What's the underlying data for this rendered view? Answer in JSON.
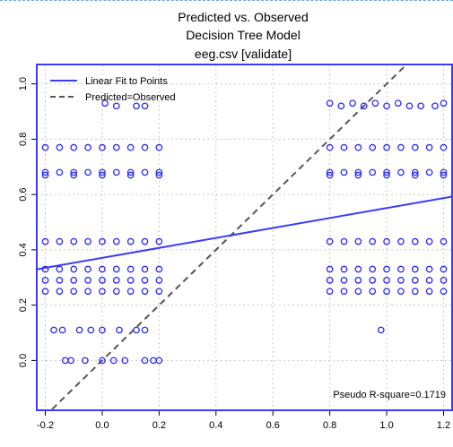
{
  "chart_data": {
    "type": "scatter",
    "title": [
      "Predicted vs. Observed",
      "Decision Tree Model",
      "eeg.csv [validate]"
    ],
    "xlabel": "",
    "ylabel": "",
    "xlim": [
      -0.23,
      1.23
    ],
    "ylim": [
      -0.18,
      1.07
    ],
    "x_ticks": [
      -0.2,
      0.0,
      0.2,
      0.4,
      0.6,
      0.8,
      1.0,
      1.2
    ],
    "x_tick_labels": [
      "-0.2",
      "0.0",
      "0.2",
      "0.4",
      "0.6",
      "0.8",
      "1.0",
      "1.2"
    ],
    "y_ticks": [
      0.0,
      0.2,
      0.4,
      0.6,
      0.8,
      1.0
    ],
    "y_tick_labels": [
      "0.0",
      "0.2",
      "0.4",
      "0.6",
      "0.8",
      "1.0"
    ],
    "grid": true,
    "legend": {
      "placement": "top-left",
      "entries": [
        {
          "label": "Linear Fit to Points",
          "style": "solid",
          "color": "#3b3bff"
        },
        {
          "label": "Predicted=Observed",
          "style": "dashed",
          "color": "#555555"
        }
      ]
    },
    "annotation": "Pseudo R-square=0.1719",
    "point_color": "#2a2af5",
    "series": [
      {
        "values": [
          [
            0.01,
            0.93
          ],
          [
            0.05,
            0.92
          ],
          [
            0.12,
            0.92
          ],
          [
            0.15,
            0.92
          ],
          [
            0.8,
            0.93
          ],
          [
            0.84,
            0.92
          ],
          [
            0.88,
            0.93
          ],
          [
            0.92,
            0.92
          ],
          [
            0.96,
            0.93
          ],
          [
            1.0,
            0.92
          ],
          [
            1.04,
            0.93
          ],
          [
            1.08,
            0.92
          ],
          [
            1.12,
            0.92
          ],
          [
            1.17,
            0.92
          ],
          [
            1.2,
            0.93
          ],
          [
            -0.2,
            0.77
          ],
          [
            -0.15,
            0.77
          ],
          [
            -0.1,
            0.77
          ],
          [
            -0.05,
            0.77
          ],
          [
            0.0,
            0.77
          ],
          [
            0.05,
            0.77
          ],
          [
            0.1,
            0.77
          ],
          [
            0.15,
            0.77
          ],
          [
            0.2,
            0.77
          ],
          [
            0.8,
            0.77
          ],
          [
            0.85,
            0.77
          ],
          [
            0.9,
            0.77
          ],
          [
            0.95,
            0.77
          ],
          [
            1.0,
            0.77
          ],
          [
            1.05,
            0.77
          ],
          [
            1.1,
            0.77
          ],
          [
            1.15,
            0.77
          ],
          [
            1.2,
            0.77
          ],
          [
            -0.2,
            0.68
          ],
          [
            -0.15,
            0.68
          ],
          [
            -0.1,
            0.68
          ],
          [
            -0.05,
            0.68
          ],
          [
            0.0,
            0.68
          ],
          [
            0.05,
            0.68
          ],
          [
            0.1,
            0.68
          ],
          [
            0.15,
            0.68
          ],
          [
            0.2,
            0.68
          ],
          [
            0.8,
            0.68
          ],
          [
            0.85,
            0.68
          ],
          [
            0.9,
            0.68
          ],
          [
            0.95,
            0.68
          ],
          [
            1.0,
            0.68
          ],
          [
            1.05,
            0.68
          ],
          [
            1.1,
            0.68
          ],
          [
            1.15,
            0.68
          ],
          [
            1.2,
            0.68
          ],
          [
            -0.2,
            0.67
          ],
          [
            -0.1,
            0.67
          ],
          [
            0.0,
            0.67
          ],
          [
            0.1,
            0.67
          ],
          [
            0.2,
            0.67
          ],
          [
            0.8,
            0.67
          ],
          [
            0.9,
            0.67
          ],
          [
            1.0,
            0.67
          ],
          [
            1.1,
            0.67
          ],
          [
            1.2,
            0.67
          ],
          [
            -0.2,
            0.43
          ],
          [
            -0.15,
            0.43
          ],
          [
            -0.1,
            0.43
          ],
          [
            -0.05,
            0.43
          ],
          [
            0.0,
            0.43
          ],
          [
            0.05,
            0.43
          ],
          [
            0.1,
            0.43
          ],
          [
            0.15,
            0.43
          ],
          [
            0.2,
            0.43
          ],
          [
            0.8,
            0.43
          ],
          [
            0.85,
            0.43
          ],
          [
            0.9,
            0.43
          ],
          [
            0.95,
            0.43
          ],
          [
            1.0,
            0.43
          ],
          [
            1.05,
            0.43
          ],
          [
            1.1,
            0.43
          ],
          [
            1.15,
            0.43
          ],
          [
            1.2,
            0.43
          ],
          [
            -0.2,
            0.33
          ],
          [
            -0.15,
            0.33
          ],
          [
            -0.1,
            0.33
          ],
          [
            -0.05,
            0.33
          ],
          [
            0.0,
            0.33
          ],
          [
            0.05,
            0.33
          ],
          [
            0.1,
            0.33
          ],
          [
            0.15,
            0.33
          ],
          [
            0.2,
            0.33
          ],
          [
            0.8,
            0.33
          ],
          [
            0.85,
            0.33
          ],
          [
            0.9,
            0.33
          ],
          [
            0.95,
            0.33
          ],
          [
            1.0,
            0.33
          ],
          [
            1.05,
            0.33
          ],
          [
            1.1,
            0.33
          ],
          [
            1.15,
            0.33
          ],
          [
            1.2,
            0.33
          ],
          [
            -0.2,
            0.29
          ],
          [
            -0.15,
            0.29
          ],
          [
            -0.1,
            0.29
          ],
          [
            -0.05,
            0.29
          ],
          [
            0.0,
            0.29
          ],
          [
            0.05,
            0.29
          ],
          [
            0.1,
            0.29
          ],
          [
            0.15,
            0.29
          ],
          [
            0.2,
            0.29
          ],
          [
            0.8,
            0.29
          ],
          [
            0.85,
            0.29
          ],
          [
            0.9,
            0.29
          ],
          [
            0.95,
            0.29
          ],
          [
            1.0,
            0.29
          ],
          [
            1.05,
            0.29
          ],
          [
            1.1,
            0.29
          ],
          [
            1.15,
            0.29
          ],
          [
            1.2,
            0.29
          ],
          [
            -0.2,
            0.25
          ],
          [
            -0.15,
            0.25
          ],
          [
            -0.1,
            0.25
          ],
          [
            -0.05,
            0.25
          ],
          [
            0.0,
            0.25
          ],
          [
            0.05,
            0.25
          ],
          [
            0.1,
            0.25
          ],
          [
            0.15,
            0.25
          ],
          [
            0.2,
            0.25
          ],
          [
            0.8,
            0.25
          ],
          [
            0.85,
            0.25
          ],
          [
            0.9,
            0.25
          ],
          [
            0.95,
            0.25
          ],
          [
            1.0,
            0.25
          ],
          [
            1.05,
            0.25
          ],
          [
            1.1,
            0.25
          ],
          [
            1.15,
            0.25
          ],
          [
            1.2,
            0.25
          ],
          [
            -0.17,
            0.11
          ],
          [
            -0.14,
            0.11
          ],
          [
            -0.08,
            0.11
          ],
          [
            -0.04,
            0.11
          ],
          [
            0.0,
            0.11
          ],
          [
            0.06,
            0.11
          ],
          [
            0.12,
            0.11
          ],
          [
            0.15,
            0.11
          ],
          [
            0.98,
            0.11
          ],
          [
            -0.13,
            0.0
          ],
          [
            -0.11,
            0.0
          ],
          [
            -0.06,
            0.0
          ],
          [
            0.0,
            0.0
          ],
          [
            0.04,
            0.0
          ],
          [
            0.08,
            0.0
          ],
          [
            0.15,
            0.0
          ],
          [
            0.18,
            0.0
          ],
          [
            0.2,
            0.0
          ]
        ]
      }
    ],
    "fit_line": {
      "intercept": 0.371,
      "slope": 0.18
    },
    "identity_line": {
      "intercept": 0.0,
      "slope": 1.0
    }
  }
}
